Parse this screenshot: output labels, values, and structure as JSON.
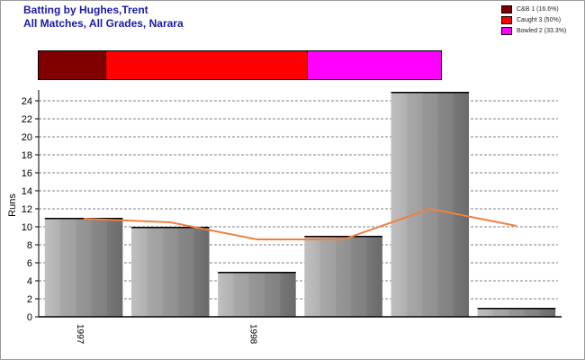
{
  "header": {
    "title": "Batting by Hughes,Trent",
    "subtitle": "All Matches, All Grades, Narara"
  },
  "legend": {
    "items": [
      {
        "label": "C&B 1 (16.6%)",
        "color": "#800000"
      },
      {
        "label": "Caught 3 (50%)",
        "color": "#ff0000"
      },
      {
        "label": "Bowled 2 (33.3%)",
        "color": "#ff00ff"
      }
    ]
  },
  "dismissals": {
    "segments": [
      {
        "name": "C&B",
        "count": 1,
        "fraction": 0.166,
        "color": "#800000"
      },
      {
        "name": "Caught",
        "count": 3,
        "fraction": 0.5,
        "color": "#ff0000"
      },
      {
        "name": "Bowled",
        "count": 2,
        "fraction": 0.333,
        "color": "#ff00ff"
      }
    ]
  },
  "chart_data": {
    "type": "bar",
    "ylabel": "Runs",
    "ylim": [
      0,
      25
    ],
    "yticks": [
      0,
      2,
      4,
      6,
      8,
      10,
      12,
      14,
      16,
      18,
      20,
      22,
      24
    ],
    "grid": true,
    "xtick_labels": [
      {
        "label": "1997",
        "index": 0
      },
      {
        "label": "1998",
        "index": 2
      }
    ],
    "series": [
      {
        "type": "bar",
        "values": [
          11,
          10,
          5,
          9,
          25,
          1
        ],
        "color": "#9a9a9a"
      },
      {
        "type": "line",
        "values": [
          10.9,
          10.5,
          8.6,
          8.6,
          12,
          10.1
        ],
        "color": "#f08040"
      }
    ]
  }
}
